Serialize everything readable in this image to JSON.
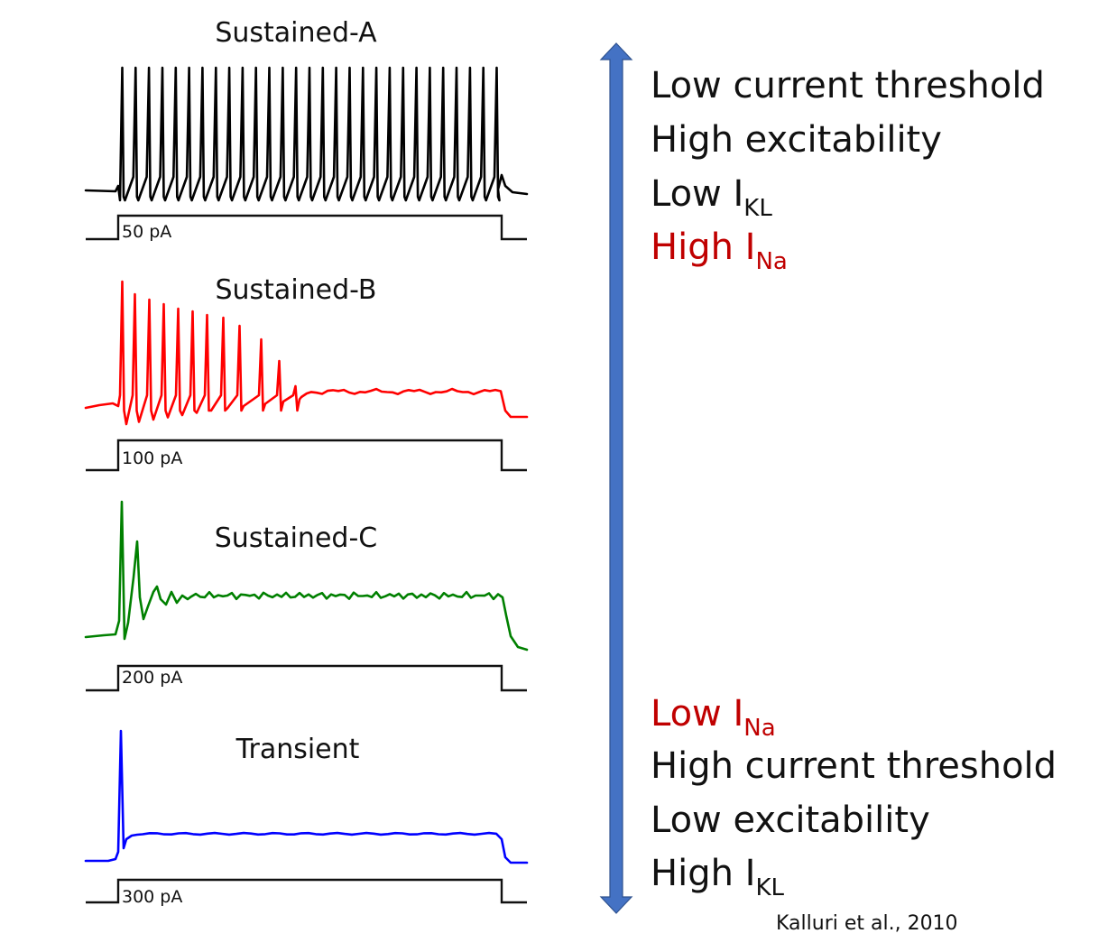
{
  "panels": [
    {
      "id": "sustained-a",
      "title": "Sustained-A",
      "stimulus_label": "50 pA",
      "color": "#000000"
    },
    {
      "id": "sustained-b",
      "title": "Sustained-B",
      "stimulus_label": "100 pA",
      "color": "#ff0000"
    },
    {
      "id": "sustained-c",
      "title": "Sustained-C",
      "stimulus_label": "200 pA",
      "color": "#008000"
    },
    {
      "id": "transient",
      "title": "Transient",
      "stimulus_label": "300 pA",
      "color": "#0000ff"
    }
  ],
  "top_properties": [
    {
      "text": "Low current threshold",
      "sub": "",
      "color": "#111111"
    },
    {
      "text": "High excitability",
      "sub": "",
      "color": "#111111"
    },
    {
      "text": "Low I",
      "sub": "KL",
      "color": "#111111"
    },
    {
      "text": "High I",
      "sub": "Na",
      "color": "#c00000"
    }
  ],
  "bottom_properties": [
    {
      "text": "Low I",
      "sub": "Na",
      "color": "#c00000"
    },
    {
      "text": "High current threshold",
      "sub": "",
      "color": "#111111"
    },
    {
      "text": "Low excitability",
      "sub": "",
      "color": "#111111"
    },
    {
      "text": "High I",
      "sub": "KL",
      "color": "#111111"
    }
  ],
  "arrow_color": "#4472c4",
  "citation": "Kalluri et al., 2010"
}
